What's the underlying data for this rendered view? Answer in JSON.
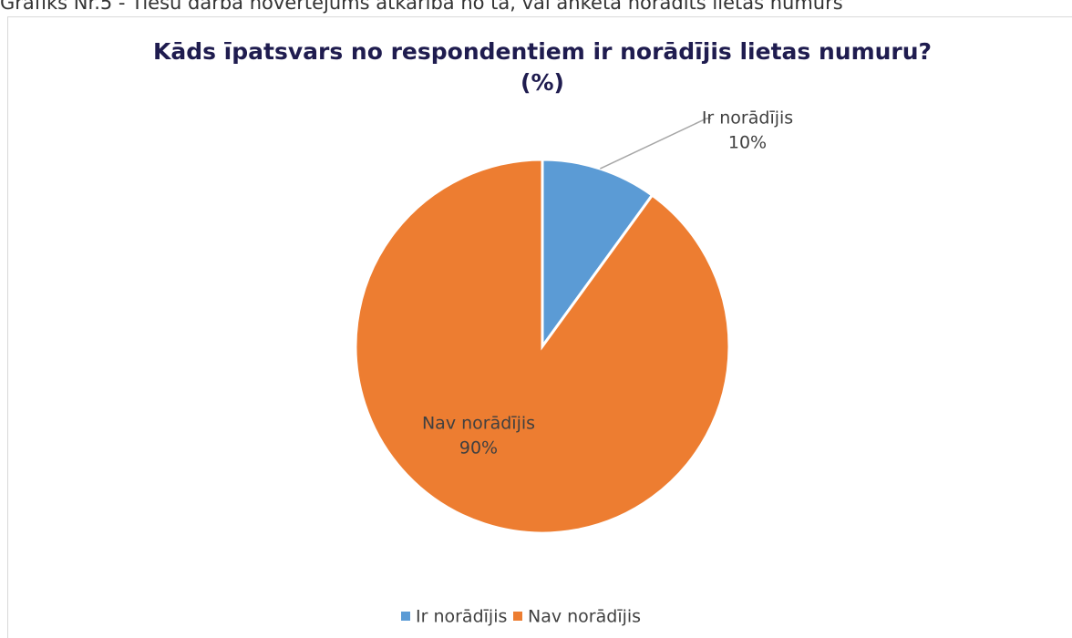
{
  "caption": "Grafiks Nr.5 - Tiesu darba novērtējums atkarībā no tā, vai anketā norādīts lietas numurs",
  "chart_data": {
    "type": "pie",
    "title": [
      "Kāds īpatsvars no respondentiem ir norādījis lietas numuru?",
      "(%)"
    ],
    "categories": [
      "Ir norādījis",
      "Nav norādījis"
    ],
    "values": [
      10,
      90
    ],
    "value_labels": [
      "10%",
      "90%"
    ],
    "colors": [
      "#5b9bd5",
      "#ed7d31"
    ],
    "legend": "bottom"
  }
}
